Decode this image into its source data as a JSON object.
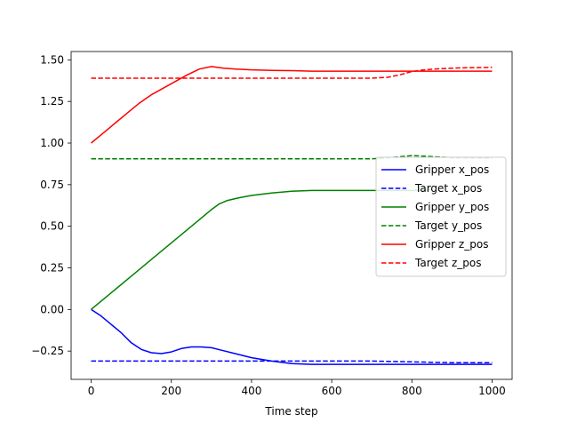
{
  "chart_data": {
    "type": "line",
    "title": "",
    "xlabel": "Time step",
    "ylabel": "",
    "xlim": [
      -50,
      1050
    ],
    "ylim": [
      -0.42,
      1.55
    ],
    "grid": false,
    "legend_placement": "center-right",
    "x_ticks": [
      0,
      200,
      400,
      600,
      800,
      1000
    ],
    "x_tick_labels": [
      "0",
      "200",
      "400",
      "600",
      "800",
      "1000"
    ],
    "y_ticks": [
      -0.25,
      0.0,
      0.25,
      0.5,
      0.75,
      1.0,
      1.25,
      1.5
    ],
    "y_tick_labels": [
      "−0.25",
      "0.00",
      "0.25",
      "0.50",
      "0.75",
      "1.00",
      "1.25",
      "1.50"
    ],
    "series": [
      {
        "name": "Gripper x_pos",
        "color": "#0000ff",
        "dash": "solid",
        "points": [
          [
            0,
            0.0
          ],
          [
            25,
            -0.04
          ],
          [
            50,
            -0.09
          ],
          [
            75,
            -0.14
          ],
          [
            100,
            -0.2
          ],
          [
            125,
            -0.24
          ],
          [
            150,
            -0.26
          ],
          [
            175,
            -0.265
          ],
          [
            200,
            -0.255
          ],
          [
            225,
            -0.235
          ],
          [
            250,
            -0.225
          ],
          [
            275,
            -0.225
          ],
          [
            300,
            -0.23
          ],
          [
            325,
            -0.245
          ],
          [
            350,
            -0.26
          ],
          [
            400,
            -0.29
          ],
          [
            450,
            -0.31
          ],
          [
            500,
            -0.325
          ],
          [
            550,
            -0.33
          ],
          [
            600,
            -0.33
          ],
          [
            700,
            -0.33
          ],
          [
            800,
            -0.33
          ],
          [
            900,
            -0.33
          ],
          [
            1000,
            -0.33
          ]
        ]
      },
      {
        "name": "Target x_pos",
        "color": "#0000ff",
        "dash": "dashed",
        "points": [
          [
            0,
            -0.31
          ],
          [
            200,
            -0.31
          ],
          [
            400,
            -0.31
          ],
          [
            600,
            -0.31
          ],
          [
            700,
            -0.31
          ],
          [
            800,
            -0.315
          ],
          [
            900,
            -0.32
          ],
          [
            1000,
            -0.32
          ]
        ]
      },
      {
        "name": "Gripper y_pos",
        "color": "#008000",
        "dash": "solid",
        "points": [
          [
            0,
            0.0
          ],
          [
            50,
            0.1
          ],
          [
            100,
            0.2
          ],
          [
            150,
            0.3
          ],
          [
            200,
            0.4
          ],
          [
            250,
            0.5
          ],
          [
            300,
            0.6
          ],
          [
            320,
            0.635
          ],
          [
            340,
            0.655
          ],
          [
            370,
            0.672
          ],
          [
            400,
            0.685
          ],
          [
            450,
            0.7
          ],
          [
            500,
            0.71
          ],
          [
            550,
            0.715
          ],
          [
            600,
            0.715
          ],
          [
            700,
            0.715
          ],
          [
            800,
            0.715
          ],
          [
            850,
            0.72
          ]
        ]
      },
      {
        "name": "Target y_pos",
        "color": "#008000",
        "dash": "dashed",
        "points": [
          [
            0,
            0.905
          ],
          [
            200,
            0.905
          ],
          [
            400,
            0.905
          ],
          [
            600,
            0.905
          ],
          [
            700,
            0.905
          ],
          [
            760,
            0.915
          ],
          [
            800,
            0.925
          ],
          [
            840,
            0.92
          ],
          [
            900,
            0.912
          ],
          [
            1000,
            0.91
          ]
        ]
      },
      {
        "name": "Gripper z_pos",
        "color": "#ff0000",
        "dash": "solid",
        "points": [
          [
            0,
            1.0
          ],
          [
            30,
            1.06
          ],
          [
            60,
            1.12
          ],
          [
            90,
            1.18
          ],
          [
            120,
            1.24
          ],
          [
            150,
            1.29
          ],
          [
            180,
            1.33
          ],
          [
            210,
            1.37
          ],
          [
            240,
            1.41
          ],
          [
            270,
            1.445
          ],
          [
            300,
            1.46
          ],
          [
            330,
            1.45
          ],
          [
            360,
            1.445
          ],
          [
            400,
            1.44
          ],
          [
            450,
            1.437
          ],
          [
            500,
            1.435
          ],
          [
            550,
            1.432
          ],
          [
            600,
            1.432
          ],
          [
            700,
            1.432
          ],
          [
            800,
            1.432
          ],
          [
            900,
            1.432
          ],
          [
            1000,
            1.432
          ]
        ]
      },
      {
        "name": "Target z_pos",
        "color": "#ff0000",
        "dash": "dashed",
        "points": [
          [
            0,
            1.39
          ],
          [
            200,
            1.39
          ],
          [
            400,
            1.39
          ],
          [
            600,
            1.39
          ],
          [
            700,
            1.39
          ],
          [
            740,
            1.395
          ],
          [
            770,
            1.41
          ],
          [
            800,
            1.43
          ],
          [
            830,
            1.44
          ],
          [
            870,
            1.447
          ],
          [
            920,
            1.452
          ],
          [
            1000,
            1.455
          ]
        ]
      }
    ]
  }
}
